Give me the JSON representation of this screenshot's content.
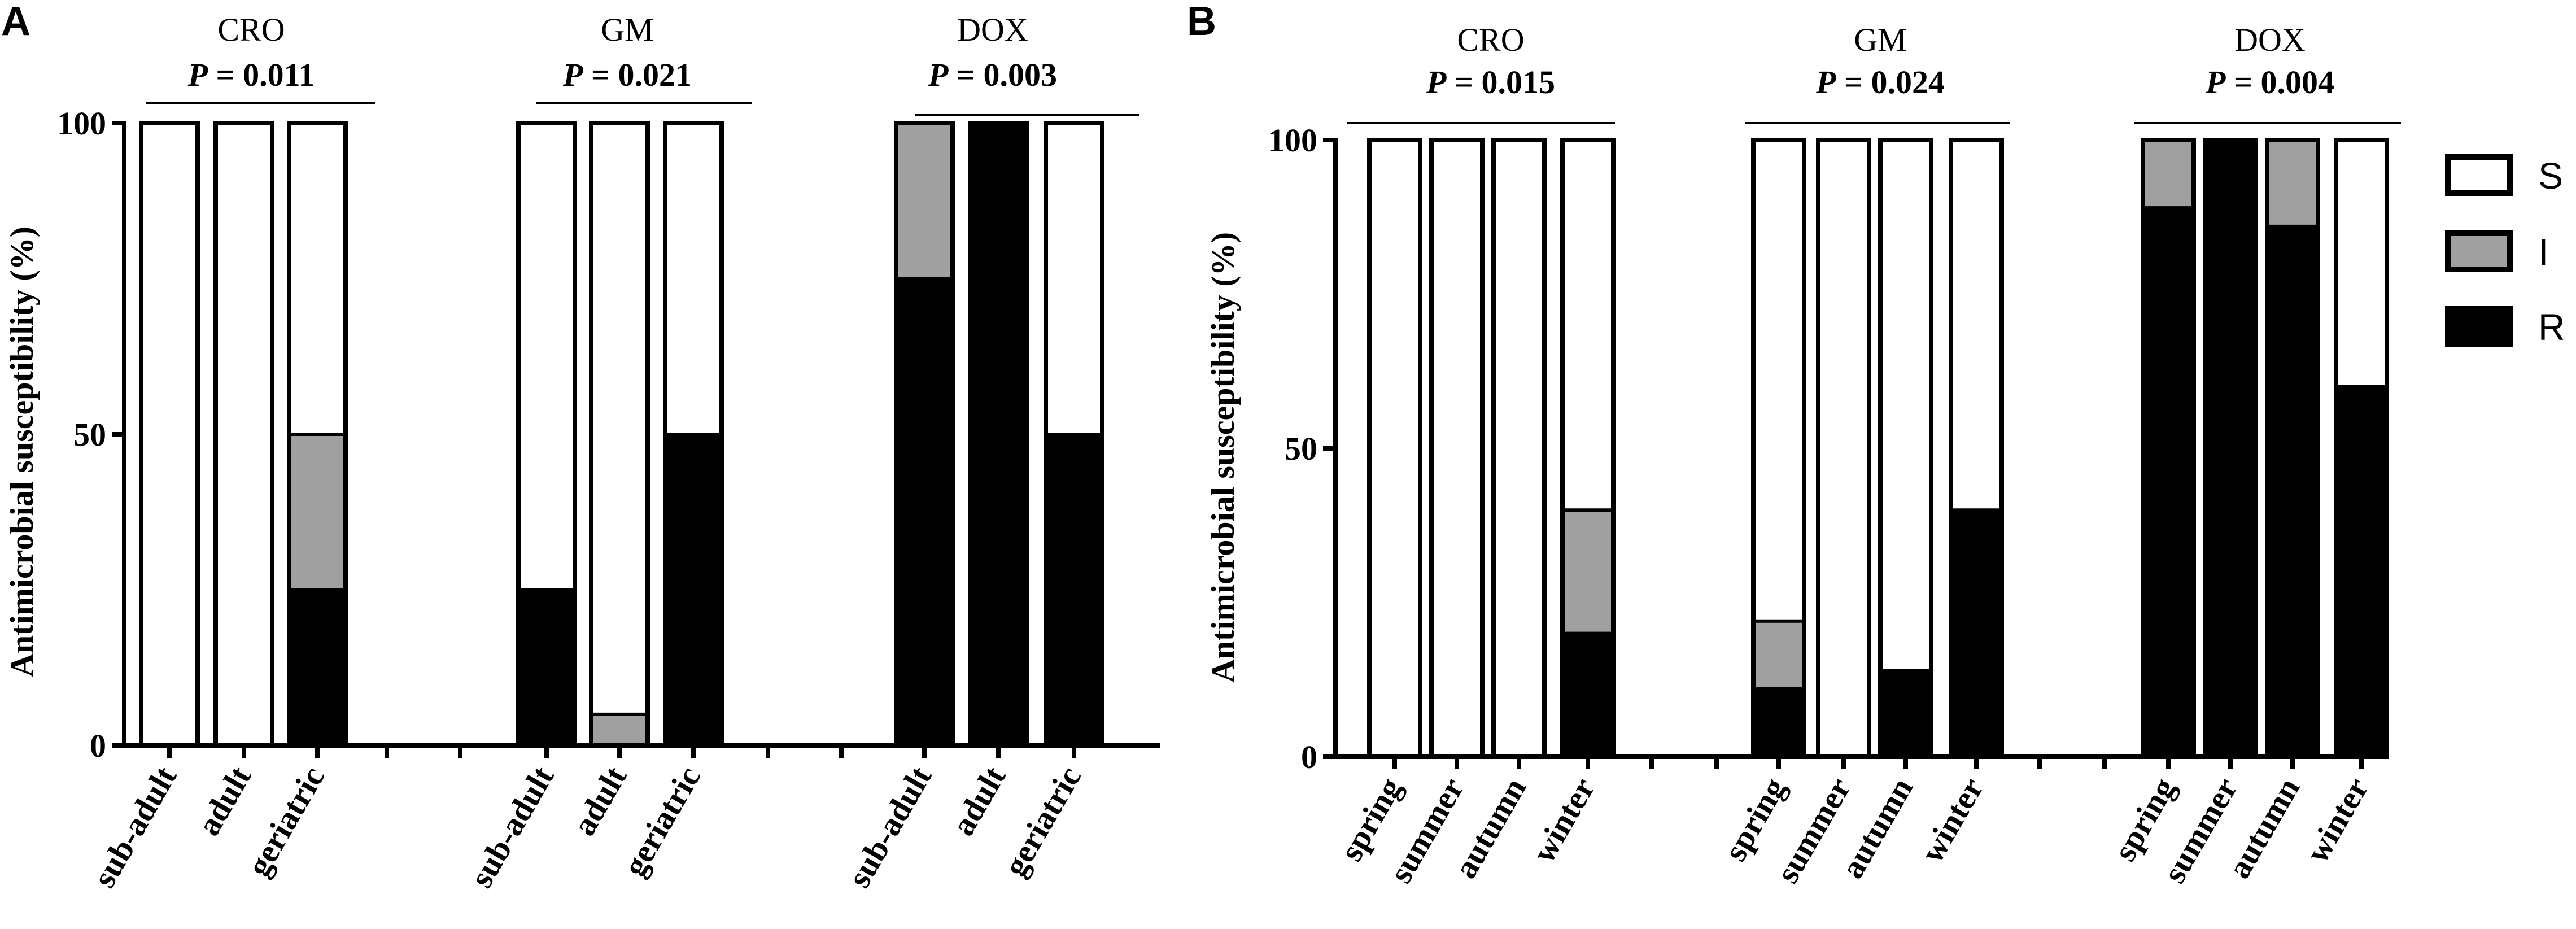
{
  "chart_data": [
    {
      "panel_label": "A",
      "type": "bar",
      "stacked": true,
      "ylabel": "Antimicrobial susceptibility (%)",
      "ylim": [
        0,
        100
      ],
      "yticks": [
        "0",
        "50",
        "100"
      ],
      "grid": false,
      "groups": [
        {
          "name": "CRO",
          "p_prefix": "P",
          "p_value": "= 0.011",
          "categories": [
            "sub-adult",
            "adult",
            "geriatric"
          ],
          "R": [
            0,
            0,
            25
          ],
          "I": [
            0,
            0,
            25
          ],
          "S": [
            100,
            100,
            50
          ]
        },
        {
          "name": "GM",
          "p_prefix": "P",
          "p_value": "= 0.021",
          "categories": [
            "sub-adult",
            "adult",
            "geriatric"
          ],
          "R": [
            25,
            0,
            50
          ],
          "I": [
            0,
            5,
            0
          ],
          "S": [
            75,
            95,
            50
          ]
        },
        {
          "name": "DOX",
          "p_prefix": "P",
          "p_value": "= 0.003",
          "categories": [
            "sub-adult",
            "adult",
            "geriatric"
          ],
          "R": [
            75,
            100,
            50
          ],
          "I": [
            25,
            0,
            0
          ],
          "S": [
            0,
            0,
            50
          ]
        }
      ]
    },
    {
      "panel_label": "B",
      "type": "bar",
      "stacked": true,
      "ylabel": "Antimicrobial susceptibility (%)",
      "ylim": [
        0,
        100
      ],
      "yticks": [
        "0",
        "50",
        "100"
      ],
      "grid": false,
      "legend_position": "right",
      "legend": [
        {
          "key": "S",
          "label": "S",
          "color": "#ffffff"
        },
        {
          "key": "I",
          "label": "I",
          "color": "#a0a0a0"
        },
        {
          "key": "R",
          "label": "R",
          "color": "#000000"
        }
      ],
      "groups": [
        {
          "name": "CRO",
          "p_prefix": "P",
          "p_value": "= 0.015",
          "categories": [
            "spring",
            "summer",
            "autumn",
            "winter"
          ],
          "R": [
            0,
            0,
            0,
            20
          ],
          "I": [
            0,
            0,
            0,
            20
          ],
          "S": [
            100,
            100,
            100,
            60
          ]
        },
        {
          "name": "GM",
          "p_prefix": "P",
          "p_value": "= 0.024",
          "categories": [
            "spring",
            "summer",
            "autumn",
            "winter"
          ],
          "R": [
            11,
            0,
            14,
            40
          ],
          "I": [
            11,
            0,
            0,
            0
          ],
          "S": [
            78,
            100,
            86,
            60
          ]
        },
        {
          "name": "DOX",
          "p_prefix": "P",
          "p_value": "= 0.004",
          "categories": [
            "spring",
            "summer",
            "autumn",
            "winter"
          ],
          "R": [
            89,
            100,
            86,
            60
          ],
          "I": [
            11,
            0,
            14,
            0
          ],
          "S": [
            0,
            0,
            0,
            40
          ]
        }
      ]
    }
  ],
  "colors": {
    "S": "#ffffff",
    "I": "#a0a0a0",
    "R": "#000000",
    "axis": "#000000"
  }
}
